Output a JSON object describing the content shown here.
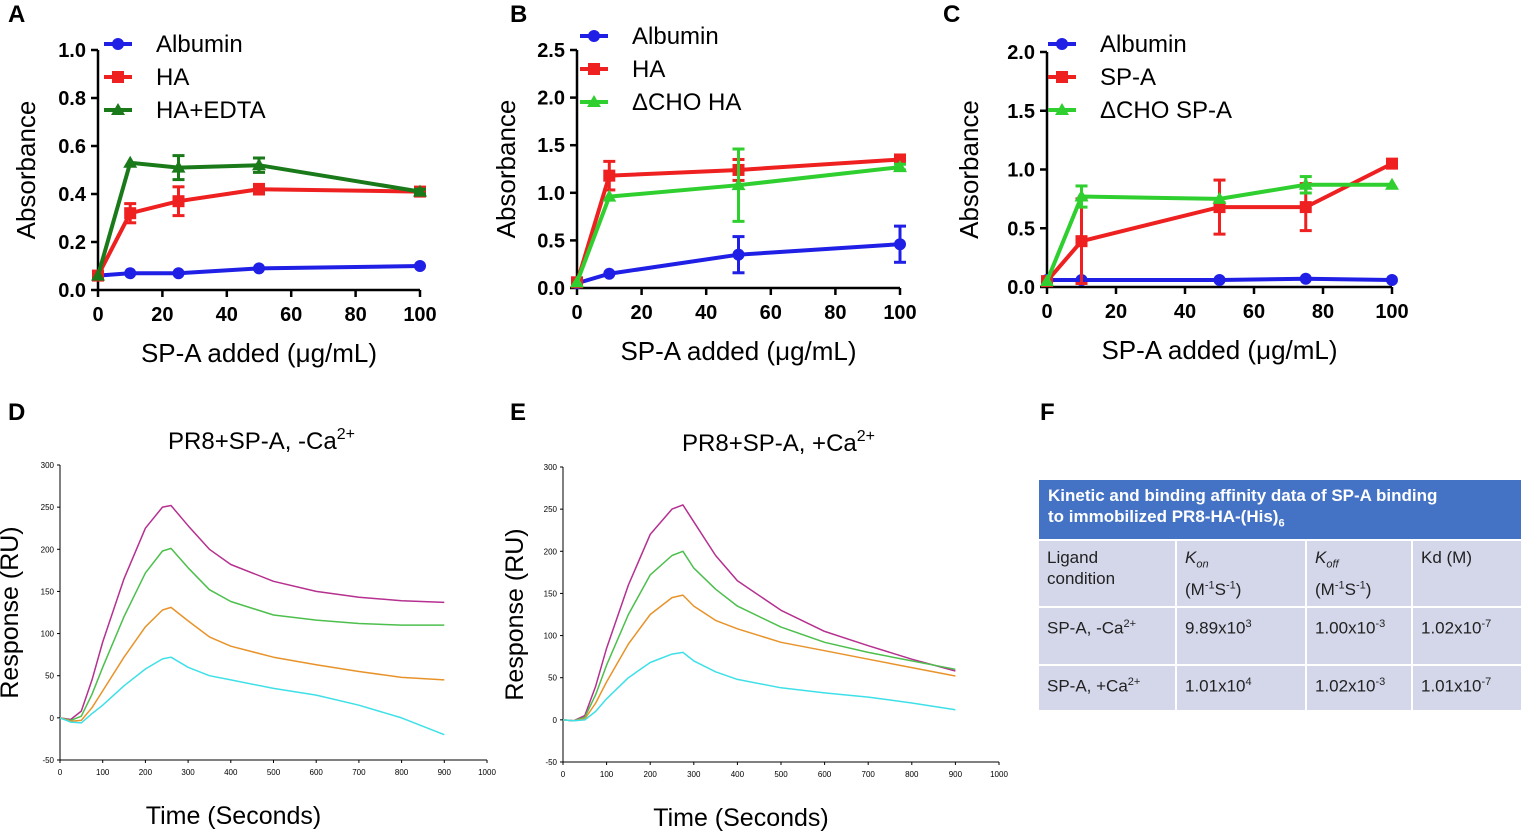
{
  "figure": {
    "panels": {
      "A": "A",
      "B": "B",
      "C": "C",
      "D": "D",
      "E": "E",
      "F": "F"
    }
  },
  "chart_data": [
    {
      "id": "A",
      "type": "line",
      "xlabel": "SP-A added (μg/mL)",
      "ylabel": "Absorbance",
      "xlim": [
        0,
        100
      ],
      "ylim": [
        0,
        1.0
      ],
      "xticks": [
        0,
        20,
        40,
        60,
        80,
        100
      ],
      "yticks": [
        0.0,
        0.2,
        0.4,
        0.6,
        0.8,
        1.0
      ],
      "ytick_labels": [
        "0.0",
        "0.2",
        "0.4",
        "0.6",
        "0.8",
        "1.0"
      ],
      "legend": "top-left",
      "series": [
        {
          "name": "Albumin",
          "color": "#1f1fe6",
          "marker": "circle",
          "x": [
            0,
            10,
            25,
            50,
            100
          ],
          "y": [
            0.06,
            0.07,
            0.07,
            0.09,
            0.1
          ],
          "err": [
            0,
            0,
            0,
            0,
            0
          ]
        },
        {
          "name": "HA",
          "color": "#ee2020",
          "marker": "square",
          "x": [
            0,
            10,
            25,
            50,
            100
          ],
          "y": [
            0.06,
            0.32,
            0.37,
            0.42,
            0.41
          ],
          "err": [
            0,
            0.04,
            0.06,
            0.02,
            0.01
          ]
        },
        {
          "name": "HA+EDTA",
          "color": "#1a7a1a",
          "marker": "triangle",
          "x": [
            0,
            10,
            25,
            50,
            100
          ],
          "y": [
            0.06,
            0.53,
            0.51,
            0.52,
            0.41
          ],
          "err": [
            0,
            0,
            0.05,
            0.03,
            0.01
          ]
        }
      ]
    },
    {
      "id": "B",
      "type": "line",
      "xlabel": "SP-A added (μg/mL)",
      "ylabel": "Absorbance",
      "xlim": [
        0,
        100
      ],
      "ylim": [
        0,
        2.5
      ],
      "xticks": [
        0,
        20,
        40,
        60,
        80,
        100
      ],
      "yticks": [
        0.0,
        0.5,
        1.0,
        1.5,
        2.0,
        2.5
      ],
      "ytick_labels": [
        "0.0",
        "0.5",
        "1.0",
        "1.5",
        "2.0",
        "2.5"
      ],
      "legend": "top-left",
      "series": [
        {
          "name": "Albumin",
          "color": "#1f1fe6",
          "marker": "circle",
          "x": [
            0,
            10,
            50,
            100
          ],
          "y": [
            0.05,
            0.15,
            0.35,
            0.46
          ],
          "err": [
            0,
            0,
            0.19,
            0.19
          ]
        },
        {
          "name": "HA",
          "color": "#ee2020",
          "marker": "square",
          "x": [
            0,
            10,
            50,
            100
          ],
          "y": [
            0.06,
            1.18,
            1.24,
            1.35
          ],
          "err": [
            0,
            0.15,
            0.11,
            0.04
          ]
        },
        {
          "name": "ΔCHO HA",
          "color": "#2fcf2f",
          "marker": "triangle",
          "x": [
            0,
            10,
            50,
            100
          ],
          "y": [
            0.06,
            0.96,
            1.08,
            1.27
          ],
          "err": [
            0,
            0,
            0.38,
            0.03
          ]
        }
      ]
    },
    {
      "id": "C",
      "type": "line",
      "xlabel": "SP-A added (μg/mL)",
      "ylabel": "Absorbance",
      "xlim": [
        0,
        100
      ],
      "ylim": [
        0,
        2.0
      ],
      "xticks": [
        0,
        20,
        40,
        60,
        80,
        100
      ],
      "yticks": [
        0.0,
        0.5,
        1.0,
        1.5,
        2.0
      ],
      "ytick_labels": [
        "0.0",
        "0.5",
        "1.0",
        "1.5",
        "2.0"
      ],
      "legend": "top-left",
      "series": [
        {
          "name": "Albumin",
          "color": "#1f1fe6",
          "marker": "circle",
          "x": [
            0,
            10,
            50,
            75,
            100
          ],
          "y": [
            0.06,
            0.06,
            0.06,
            0.07,
            0.06
          ],
          "err": [
            0,
            0,
            0,
            0,
            0
          ]
        },
        {
          "name": "SP-A",
          "color": "#ee2020",
          "marker": "square",
          "x": [
            0,
            10,
            50,
            75,
            100
          ],
          "y": [
            0.05,
            0.39,
            0.68,
            0.68,
            1.05
          ],
          "err": [
            0,
            0.36,
            0.23,
            0.2,
            0.02
          ]
        },
        {
          "name": "ΔCHO SP-A",
          "color": "#2fcf2f",
          "marker": "triangle",
          "x": [
            0,
            10,
            50,
            75,
            100
          ],
          "y": [
            0.05,
            0.77,
            0.75,
            0.87,
            0.87
          ],
          "err": [
            0,
            0.09,
            0,
            0.07,
            0
          ]
        }
      ]
    },
    {
      "id": "D",
      "type": "line",
      "title": "PR8+SP-A, -Ca",
      "title_sup": "2+",
      "xlabel": "Time (Seconds)",
      "ylabel": "Response (RU)",
      "xlim": [
        0,
        1000
      ],
      "ylim": [
        -50,
        300
      ],
      "xticks": [
        0,
        100,
        200,
        300,
        400,
        500,
        600,
        700,
        800,
        900,
        1000
      ],
      "yticks": [
        -50,
        0,
        50,
        100,
        150,
        200,
        250,
        300
      ],
      "series": [
        {
          "name": "magenta",
          "color": "#b5308f",
          "x": [
            0,
            25,
            50,
            75,
            100,
            150,
            200,
            240,
            260,
            300,
            350,
            400,
            500,
            600,
            700,
            800,
            900
          ],
          "y": [
            0,
            -2,
            8,
            45,
            90,
            165,
            225,
            250,
            252,
            228,
            200,
            182,
            162,
            150,
            143,
            139,
            137
          ]
        },
        {
          "name": "green",
          "color": "#4cbf4c",
          "x": [
            0,
            25,
            50,
            75,
            100,
            150,
            200,
            240,
            260,
            300,
            350,
            400,
            500,
            600,
            700,
            800,
            900
          ],
          "y": [
            0,
            -3,
            2,
            28,
            60,
            120,
            172,
            198,
            201,
            178,
            152,
            138,
            122,
            116,
            112,
            110,
            110
          ]
        },
        {
          "name": "orange",
          "color": "#e8932a",
          "x": [
            0,
            25,
            50,
            75,
            100,
            150,
            200,
            240,
            260,
            300,
            350,
            400,
            500,
            600,
            700,
            800,
            900
          ],
          "y": [
            0,
            -4,
            -3,
            12,
            32,
            72,
            108,
            128,
            131,
            115,
            96,
            85,
            72,
            63,
            55,
            48,
            45
          ]
        },
        {
          "name": "cyan",
          "color": "#3ee0e8",
          "x": [
            0,
            25,
            50,
            75,
            100,
            150,
            200,
            240,
            260,
            300,
            350,
            400,
            500,
            600,
            700,
            800,
            900
          ],
          "y": [
            0,
            -5,
            -6,
            5,
            15,
            38,
            58,
            70,
            72,
            60,
            50,
            45,
            35,
            27,
            15,
            0,
            -20
          ]
        }
      ]
    },
    {
      "id": "E",
      "type": "line",
      "title": "PR8+SP-A, +Ca",
      "title_sup": "2+",
      "xlabel": "Time (Seconds)",
      "ylabel": "Response (RU)",
      "xlim": [
        0,
        1000
      ],
      "ylim": [
        -50,
        300
      ],
      "xticks": [
        0,
        100,
        200,
        300,
        400,
        500,
        600,
        700,
        800,
        900,
        1000
      ],
      "yticks": [
        -50,
        0,
        50,
        100,
        150,
        200,
        250,
        300
      ],
      "series": [
        {
          "name": "magenta",
          "color": "#b5308f",
          "x": [
            0,
            25,
            50,
            75,
            100,
            150,
            200,
            250,
            275,
            300,
            350,
            400,
            500,
            600,
            700,
            800,
            900
          ],
          "y": [
            0,
            -1,
            5,
            40,
            85,
            160,
            220,
            250,
            255,
            235,
            195,
            165,
            130,
            105,
            88,
            72,
            58
          ]
        },
        {
          "name": "green",
          "color": "#4cbf4c",
          "x": [
            0,
            25,
            50,
            75,
            100,
            150,
            200,
            250,
            275,
            300,
            350,
            400,
            500,
            600,
            700,
            800,
            900
          ],
          "y": [
            0,
            -1,
            3,
            30,
            65,
            125,
            172,
            195,
            200,
            180,
            155,
            135,
            110,
            92,
            80,
            70,
            60
          ]
        },
        {
          "name": "orange",
          "color": "#e8932a",
          "x": [
            0,
            25,
            50,
            75,
            100,
            150,
            200,
            250,
            275,
            300,
            350,
            400,
            500,
            600,
            700,
            800,
            900
          ],
          "y": [
            0,
            -1,
            1,
            20,
            45,
            90,
            125,
            145,
            148,
            135,
            118,
            108,
            92,
            82,
            72,
            62,
            52
          ]
        },
        {
          "name": "cyan",
          "color": "#3ee0e8",
          "x": [
            0,
            25,
            50,
            75,
            100,
            150,
            200,
            250,
            275,
            300,
            350,
            400,
            500,
            600,
            700,
            800,
            900
          ],
          "y": [
            0,
            -1,
            0,
            10,
            25,
            50,
            68,
            78,
            80,
            70,
            57,
            48,
            38,
            32,
            27,
            20,
            12
          ]
        }
      ]
    }
  ],
  "table": {
    "header_line1": "Kinetic and binding affinity data of SP-A binding",
    "header_line2": "to immobilized PR8-HA-(His)",
    "header_sub": "6",
    "col1_line1": "Ligand",
    "col1_line2": "condition",
    "col2_k": "K",
    "col2_sub": "on",
    "col2_unit": "(M-1S-1)",
    "col3_k": "K",
    "col3_sub": "off",
    "col3_unit": "(M-1S-1)",
    "col4": "Kd (M)",
    "rows": [
      {
        "ligand": "SP-A, -Ca2+",
        "kon": "9.89x103",
        "koff": "1.00x10-3",
        "kd": "1.02x10-7"
      },
      {
        "ligand": "SP-A, +Ca2+",
        "kon": "1.01x104",
        "koff": "1.02x10-3",
        "kd": "1.01x10-7"
      }
    ]
  }
}
